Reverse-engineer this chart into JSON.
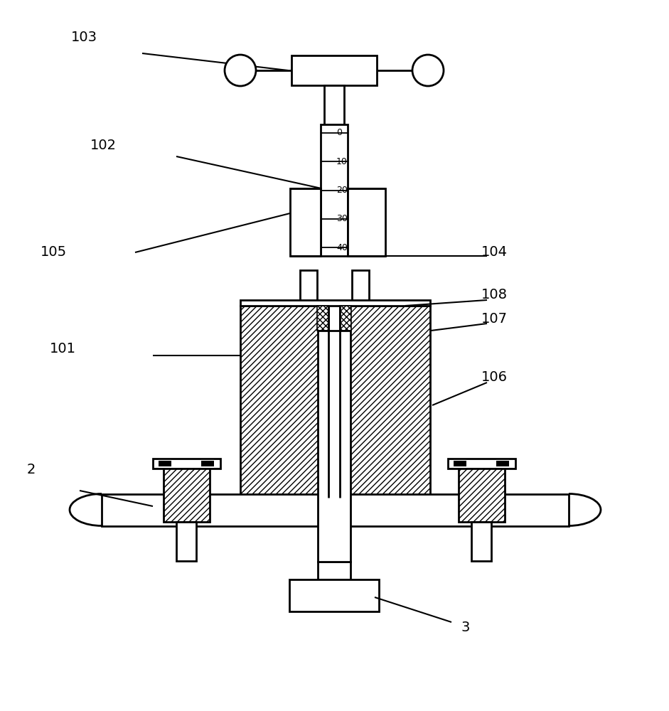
{
  "bg_color": "#ffffff",
  "line_color": "#000000",
  "fig_width": 9.41,
  "fig_height": 10.0,
  "scale_marks": [
    "0",
    "10",
    "20",
    "30",
    "40"
  ]
}
